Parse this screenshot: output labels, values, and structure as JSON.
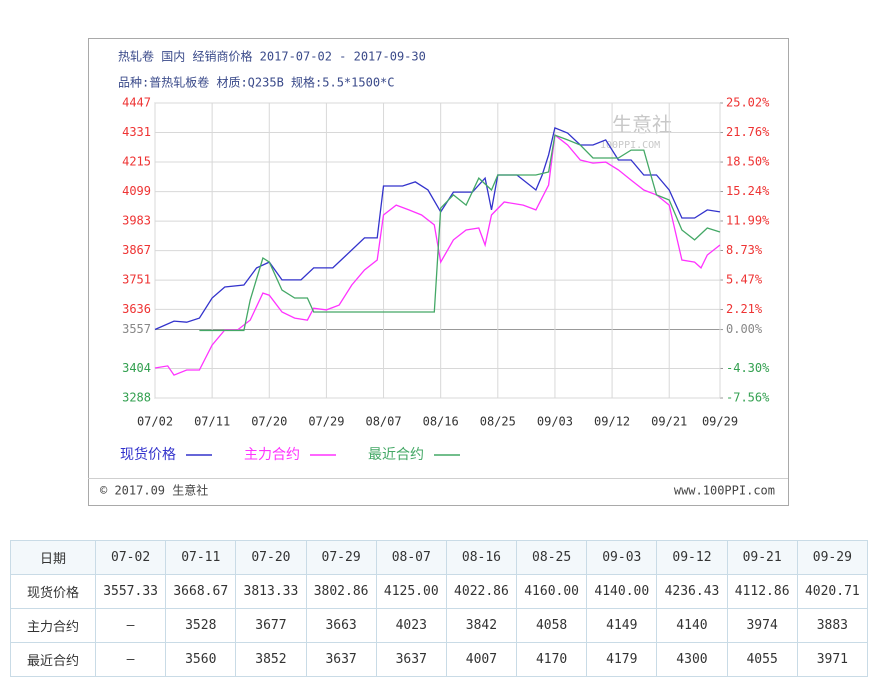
{
  "chart_data": {
    "type": "line",
    "title": "热轧卷 国内 经销商价格 2017-07-02 - 2017-09-30",
    "subtitle": "品种:普热轧板卷 材质:Q235B 规格:5.5*1500*C",
    "watermark": "生意社",
    "watermark_site": "100PPI.COM",
    "source": "© 2017.09 生意社",
    "website": "www.100PPI.com",
    "xlim": [
      "07/02",
      "09/29"
    ],
    "xticks": [
      "07/02",
      "07/11",
      "07/20",
      "07/29",
      "08/07",
      "08/16",
      "08/25",
      "09/03",
      "09/12",
      "09/21",
      "09/29"
    ],
    "ylim": [
      3288,
      4447
    ],
    "yticks": [
      3288,
      3404,
      3557,
      3636,
      3751,
      3867,
      3983,
      4099,
      4215,
      4331,
      4447
    ],
    "y2lim": [
      -7.56,
      25.02
    ],
    "y2ticks": [
      {
        "value": -7.56,
        "label": "-7.56%"
      },
      {
        "value": -4.3,
        "label": "-4.30%"
      },
      {
        "value": 0,
        "label": "0.00%"
      },
      {
        "value": 2.21,
        "label": "2.21%"
      },
      {
        "value": 5.47,
        "label": "5.47%"
      },
      {
        "value": 8.73,
        "label": "8.73%"
      },
      {
        "value": 11.99,
        "label": "11.99%"
      },
      {
        "value": 15.24,
        "label": "15.24%"
      },
      {
        "value": 18.5,
        "label": "18.50%"
      },
      {
        "value": 21.76,
        "label": "21.76%"
      },
      {
        "value": 25.02,
        "label": "25.02%"
      }
    ],
    "grid": true,
    "up_color": "#ee3333",
    "down_color": "#33a050",
    "base_color": "#888888",
    "series": [
      {
        "name": "现货价格",
        "color": "#3333cc",
        "x": [
          "07/02",
          "07/05",
          "07/07",
          "07/09",
          "07/11",
          "07/13",
          "07/16",
          "07/18",
          "07/20",
          "07/22",
          "07/25",
          "07/27",
          "07/30",
          "08/01",
          "08/04",
          "08/06",
          "08/07",
          "08/10",
          "08/12",
          "08/14",
          "08/16",
          "08/18",
          "08/21",
          "08/23",
          "08/24",
          "08/25",
          "08/28",
          "08/31",
          "09/01",
          "09/02",
          "09/03",
          "09/05",
          "09/07",
          "09/09",
          "09/11",
          "09/13",
          "09/15",
          "09/17",
          "09/19",
          "09/21",
          "09/23",
          "09/25",
          "09/27",
          "09/29"
        ],
        "values": [
          3557,
          3590,
          3586,
          3602,
          3681,
          3724,
          3732,
          3799,
          3822,
          3752,
          3752,
          3799,
          3799,
          3846,
          3917,
          3917,
          4121,
          4121,
          4137,
          4105,
          4019,
          4097,
          4097,
          4152,
          4027,
          4164,
          4164,
          4105,
          4164,
          4243,
          4349,
          4329,
          4282,
          4282,
          4302,
          4223,
          4223,
          4164,
          4164,
          4105,
          3995,
          3995,
          4027,
          4019
        ]
      },
      {
        "name": "主力合约",
        "color": "#ff33ff",
        "x": [
          "07/02",
          "07/04",
          "07/05",
          "07/07",
          "07/09",
          "07/11",
          "07/13",
          "07/15",
          "07/17",
          "07/19",
          "07/20",
          "07/22",
          "07/24",
          "07/26",
          "07/27",
          "07/29",
          "07/31",
          "08/02",
          "08/04",
          "08/06",
          "08/07",
          "08/09",
          "08/11",
          "08/13",
          "08/15",
          "08/16",
          "08/18",
          "08/20",
          "08/22",
          "08/23",
          "08/24",
          "08/26",
          "08/29",
          "08/31",
          "09/02",
          "09/03",
          "09/05",
          "09/07",
          "09/09",
          "09/11",
          "09/13",
          "09/15",
          "09/17",
          "09/19",
          "09/21",
          "09/23",
          "09/25",
          "09/26",
          "09/27",
          "09/29"
        ],
        "values": [
          3406,
          3414,
          3378,
          3398,
          3398,
          3496,
          3555,
          3555,
          3594,
          3700,
          3692,
          3626,
          3602,
          3594,
          3641,
          3634,
          3653,
          3732,
          3791,
          3830,
          4007,
          4046,
          4027,
          4007,
          3968,
          3822,
          3909,
          3948,
          3956,
          3889,
          4007,
          4058,
          4046,
          4027,
          4125,
          4321,
          4282,
          4223,
          4211,
          4215,
          4184,
          4144,
          4105,
          4086,
          4046,
          3830,
          3822,
          3799,
          3850,
          3889
        ]
      },
      {
        "name": "最近合约",
        "color": "#44a866",
        "x": [
          "07/09",
          "07/11",
          "07/14",
          "07/16",
          "07/17",
          "07/19",
          "07/20",
          "07/22",
          "07/24",
          "07/26",
          "07/27",
          "07/29",
          "08/05",
          "08/15",
          "08/16",
          "08/18",
          "08/20",
          "08/22",
          "08/24",
          "08/25",
          "08/28",
          "08/31",
          "09/02",
          "09/03",
          "09/05",
          "09/07",
          "09/09",
          "09/11",
          "09/13",
          "09/15",
          "09/17",
          "09/19",
          "09/21",
          "09/23",
          "09/25",
          "09/27",
          "09/29"
        ],
        "values": [
          3553,
          3553,
          3553,
          3553,
          3673,
          3838,
          3822,
          3712,
          3681,
          3681,
          3626,
          3626,
          3626,
          3626,
          4034,
          4086,
          4046,
          4152,
          4105,
          4164,
          4164,
          4164,
          4176,
          4321,
          4302,
          4282,
          4231,
          4231,
          4231,
          4262,
          4262,
          4086,
          4066,
          3948,
          3909,
          3956,
          3940
        ]
      }
    ]
  },
  "table": {
    "header": [
      "日期",
      "07-02",
      "07-11",
      "07-20",
      "07-29",
      "08-07",
      "08-16",
      "08-25",
      "09-03",
      "09-12",
      "09-21",
      "09-29"
    ],
    "rows": [
      [
        "现货价格",
        "3557.33",
        "3668.67",
        "3813.33",
        "3802.86",
        "4125.00",
        "4022.86",
        "4160.00",
        "4140.00",
        "4236.43",
        "4112.86",
        "4020.71"
      ],
      [
        "主力合约",
        "–",
        "3528",
        "3677",
        "3663",
        "4023",
        "3842",
        "4058",
        "4149",
        "4140",
        "3974",
        "3883"
      ],
      [
        "最近合约",
        "–",
        "3560",
        "3852",
        "3637",
        "3637",
        "4007",
        "4170",
        "4179",
        "4300",
        "4055",
        "3971"
      ]
    ]
  }
}
